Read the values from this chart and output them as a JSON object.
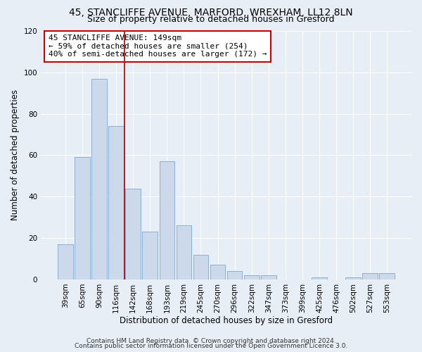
{
  "title1": "45, STANCLIFFE AVENUE, MARFORD, WREXHAM, LL12 8LN",
  "title2": "Size of property relative to detached houses in Gresford",
  "xlabel": "Distribution of detached houses by size in Gresford",
  "ylabel": "Number of detached properties",
  "bar_color": "#ccd9ea",
  "bar_edge_color": "#8bafd4",
  "categories": [
    "39sqm",
    "65sqm",
    "90sqm",
    "116sqm",
    "142sqm",
    "168sqm",
    "193sqm",
    "219sqm",
    "245sqm",
    "270sqm",
    "296sqm",
    "322sqm",
    "347sqm",
    "373sqm",
    "399sqm",
    "425sqm",
    "476sqm",
    "502sqm",
    "527sqm",
    "553sqm"
  ],
  "values": [
    17,
    59,
    97,
    74,
    44,
    23,
    57,
    26,
    12,
    7,
    4,
    2,
    2,
    0,
    0,
    1,
    0,
    1,
    3,
    3
  ],
  "redline_index": 3.5,
  "annotation_line1": "45 STANCLIFFE AVENUE: 149sqm",
  "annotation_line2": "← 59% of detached houses are smaller (254)",
  "annotation_line3": "40% of semi-detached houses are larger (172) →",
  "annotation_box_color": "#ffffff",
  "annotation_box_edge_color": "#cc0000",
  "redline_color": "#aa0000",
  "ylim": [
    0,
    120
  ],
  "yticks": [
    0,
    20,
    40,
    60,
    80,
    100,
    120
  ],
  "footnote1": "Contains HM Land Registry data  © Crown copyright and database right 2024.",
  "footnote2": "Contains public sector information licensed under the Open Government Licence 3.0.",
  "background_color": "#e8eef5",
  "plot_bg_color": "#e8eef5",
  "grid_color": "#ffffff",
  "title_fontsize": 10,
  "subtitle_fontsize": 9,
  "axis_label_fontsize": 8.5,
  "tick_fontsize": 7.5,
  "annotation_fontsize": 8,
  "footnote_fontsize": 6.5
}
